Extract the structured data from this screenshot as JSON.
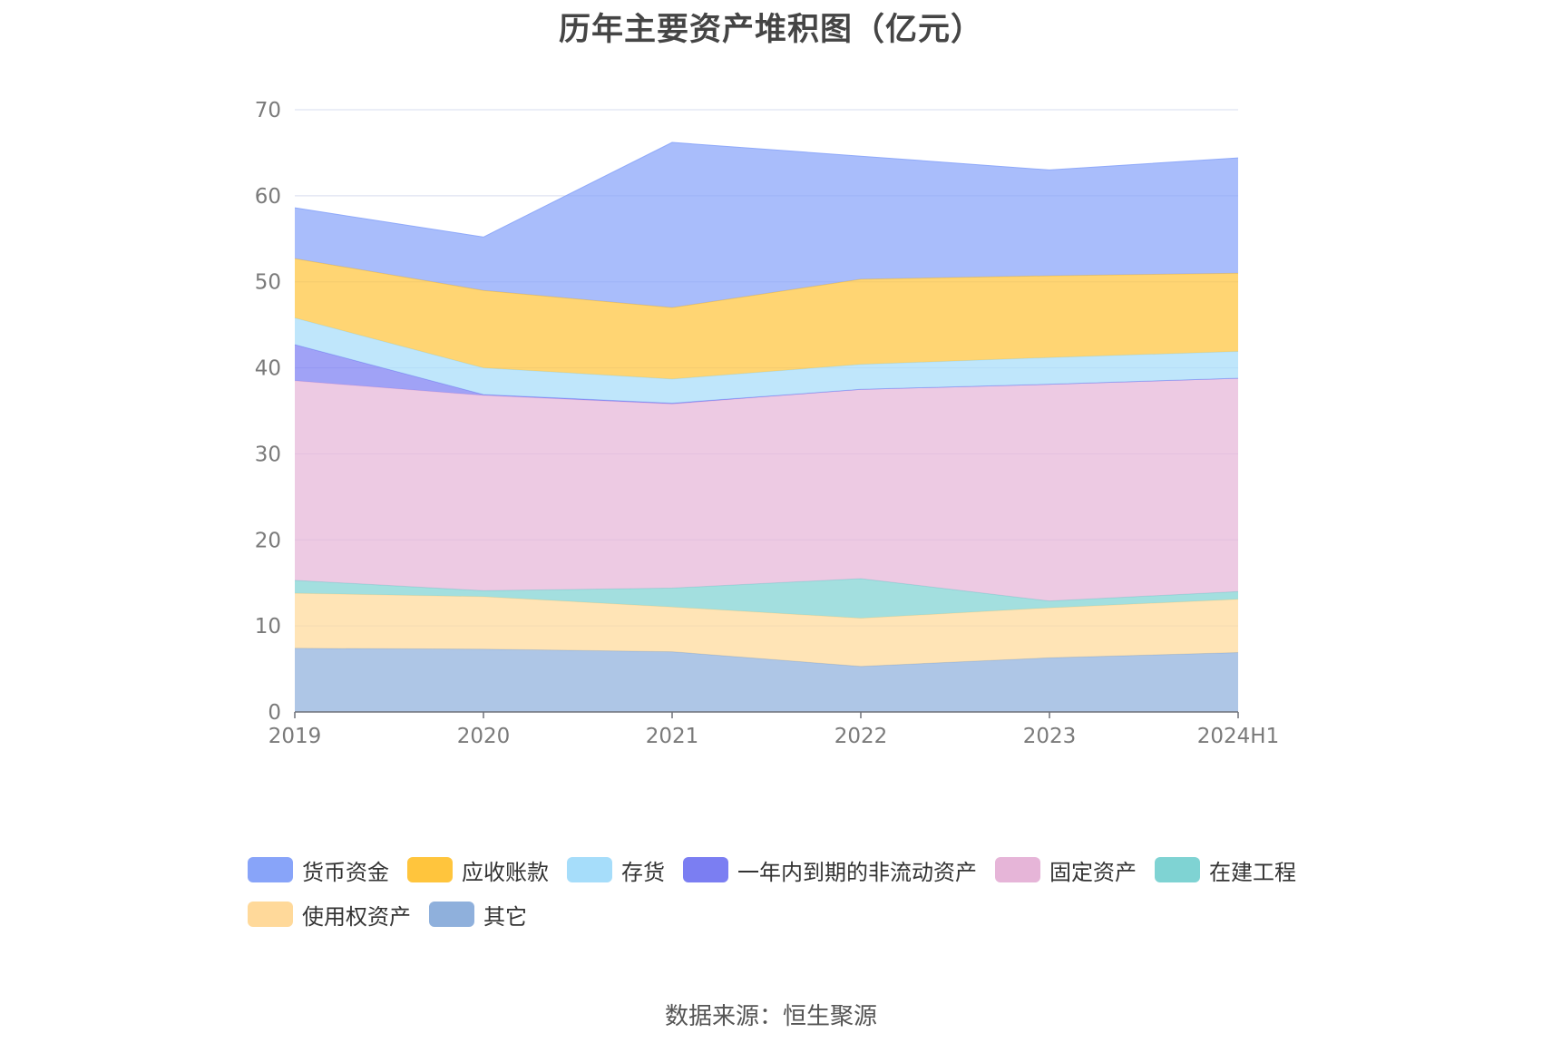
{
  "chart_data": {
    "type": "area",
    "stacked": true,
    "title": "历年主要资产堆积图（亿元）",
    "xlabel": "",
    "ylabel": "",
    "ylim": [
      0,
      70
    ],
    "yticks": [
      0,
      10,
      20,
      30,
      40,
      50,
      60,
      70
    ],
    "grid": true,
    "legend_position": "bottom",
    "categories": [
      "2019",
      "2020",
      "2021",
      "2022",
      "2023",
      "2024H1"
    ],
    "series": [
      {
        "name": "其它",
        "color": "#8fb0dc",
        "values": [
          7.4,
          7.3,
          7.0,
          5.3,
          6.3,
          6.9
        ]
      },
      {
        "name": "使用权资产",
        "color": "#ffd99a",
        "values": [
          6.4,
          6.1,
          5.2,
          5.6,
          5.8,
          6.2
        ]
      },
      {
        "name": "在建工程",
        "color": "#7fd3d3",
        "values": [
          1.5,
          0.7,
          2.2,
          4.6,
          0.8,
          0.9
        ]
      },
      {
        "name": "固定资产",
        "color": "#e6b5d8",
        "values": [
          23.2,
          22.7,
          21.4,
          22.0,
          25.2,
          24.8
        ]
      },
      {
        "name": "一年内到期的非流动资产",
        "color": "#7b7ef2",
        "values": [
          4.2,
          0.1,
          0.1,
          0.0,
          0.0,
          0.0
        ]
      },
      {
        "name": "存货",
        "color": "#a6ddfa",
        "values": [
          3.1,
          3.1,
          2.8,
          2.9,
          3.1,
          3.1
        ]
      },
      {
        "name": "应收账款",
        "color": "#ffc53d",
        "values": [
          6.9,
          9.0,
          8.3,
          9.9,
          9.5,
          9.1
        ]
      },
      {
        "name": "货币资金",
        "color": "#88a4f9",
        "values": [
          5.9,
          6.2,
          19.2,
          14.3,
          12.3,
          13.4
        ]
      }
    ]
  },
  "legend": {
    "rows": [
      [
        {
          "label": "货币资金",
          "color": "#88a4f9"
        },
        {
          "label": "应收账款",
          "color": "#ffc53d"
        },
        {
          "label": "存货",
          "color": "#a6ddfa"
        },
        {
          "label": "一年内到期的非流动资产",
          "color": "#7b7ef2"
        },
        {
          "label": "固定资产",
          "color": "#e6b5d8"
        },
        {
          "label": "在建工程",
          "color": "#7fd3d3"
        }
      ],
      [
        {
          "label": "使用权资产",
          "color": "#ffd99a"
        },
        {
          "label": "其它",
          "color": "#8fb0dc"
        }
      ]
    ]
  },
  "footer": {
    "source": "数据来源：恒生聚源"
  }
}
